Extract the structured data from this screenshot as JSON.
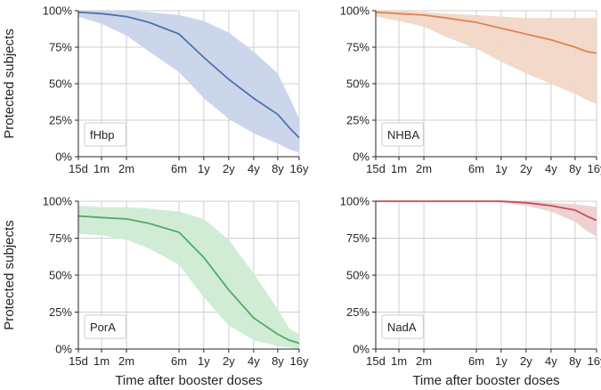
{
  "chart_data": [
    {
      "type": "line",
      "label": "fHbp",
      "color": "#4C72B0",
      "band_color": "#c9d4e9",
      "ylabel": "Protected subjects",
      "xlabel": "",
      "x_ticks": [
        "15d",
        "1m",
        "2m",
        "6m",
        "1y",
        "2y",
        "4y",
        "8y",
        "16y"
      ],
      "y_ticks": [
        "0%",
        "25%",
        "50%",
        "75%",
        "100%"
      ],
      "ylim": [
        0,
        100
      ],
      "grid": true,
      "series": [
        {
          "values": [
            99,
            98,
            96,
            92,
            84,
            68,
            53,
            40,
            29,
            20,
            13
          ]
        },
        {
          "values": [
            100,
            100,
            100,
            99,
            97,
            93,
            85,
            72,
            57,
            41,
            26
          ]
        },
        {
          "values": [
            96,
            91,
            83,
            72,
            58,
            40,
            26,
            16,
            9,
            5,
            3
          ]
        }
      ],
      "x": [
        "15d",
        "1m",
        "2m",
        "3m",
        "6m",
        "1y",
        "2y",
        "4y",
        "8y",
        "12y",
        "16y"
      ]
    },
    {
      "type": "line",
      "label": "NHBA",
      "color": "#DD8452",
      "band_color": "#f2d7c6",
      "ylabel": "",
      "xlabel": "",
      "x_ticks": [
        "15d",
        "1m",
        "2m",
        "6m",
        "1y",
        "2y",
        "4y",
        "8y",
        "16y"
      ],
      "y_ticks": [
        "0%",
        "25%",
        "50%",
        "75%",
        "100%"
      ],
      "ylim": [
        0,
        100
      ],
      "grid": true,
      "series": [
        {
          "values": [
            99,
            98,
            97,
            95,
            92,
            88,
            84,
            80,
            75,
            72,
            71
          ]
        },
        {
          "values": [
            100,
            100,
            99,
            98,
            97,
            96,
            95,
            95,
            95,
            95,
            95
          ]
        },
        {
          "values": [
            96,
            93,
            89,
            82,
            74,
            65,
            57,
            50,
            43,
            39,
            36
          ]
        }
      ],
      "x": [
        "15d",
        "1m",
        "2m",
        "3m",
        "6m",
        "1y",
        "2y",
        "4y",
        "8y",
        "12y",
        "16y"
      ]
    },
    {
      "type": "line",
      "label": "PorA",
      "color": "#55A868",
      "band_color": "#cdebd3",
      "ylabel": "Protected subjects",
      "xlabel": "Time after booster doses",
      "x_ticks": [
        "15d",
        "1m",
        "2m",
        "6m",
        "1y",
        "2y",
        "4y",
        "8y",
        "16y"
      ],
      "y_ticks": [
        "0%",
        "25%",
        "50%",
        "75%",
        "100%"
      ],
      "ylim": [
        0,
        100
      ],
      "grid": true,
      "series": [
        {
          "values": [
            90,
            89,
            88,
            85,
            79,
            62,
            40,
            21,
            10,
            6,
            4
          ]
        },
        {
          "values": [
            97,
            96,
            96,
            95,
            93,
            88,
            74,
            51,
            27,
            14,
            10
          ]
        },
        {
          "values": [
            78,
            77,
            74,
            68,
            57,
            35,
            16,
            6,
            2,
            1,
            0
          ]
        }
      ],
      "x": [
        "15d",
        "1m",
        "2m",
        "3m",
        "6m",
        "1y",
        "2y",
        "4y",
        "8y",
        "12y",
        "16y"
      ]
    },
    {
      "type": "line",
      "label": "NadA",
      "color": "#C44E52",
      "band_color": "#efcfd1",
      "ylabel": "",
      "xlabel": "Time after booster doses",
      "x_ticks": [
        "15d",
        "1m",
        "2m",
        "6m",
        "1y",
        "2y",
        "4y",
        "8y",
        "16y"
      ],
      "y_ticks": [
        "0%",
        "25%",
        "50%",
        "75%",
        "100%"
      ],
      "ylim": [
        0,
        100
      ],
      "grid": true,
      "series": [
        {
          "values": [
            100,
            100,
            100,
            100,
            100,
            100,
            99,
            97,
            94,
            90,
            87
          ]
        },
        {
          "values": [
            100,
            100,
            100,
            100,
            100,
            100,
            100,
            99,
            98,
            97,
            96
          ]
        },
        {
          "values": [
            100,
            100,
            100,
            100,
            100,
            99,
            97,
            93,
            86,
            80,
            76
          ]
        }
      ],
      "x": [
        "15d",
        "1m",
        "2m",
        "3m",
        "6m",
        "1y",
        "2y",
        "4y",
        "8y",
        "12y",
        "16y"
      ]
    }
  ]
}
